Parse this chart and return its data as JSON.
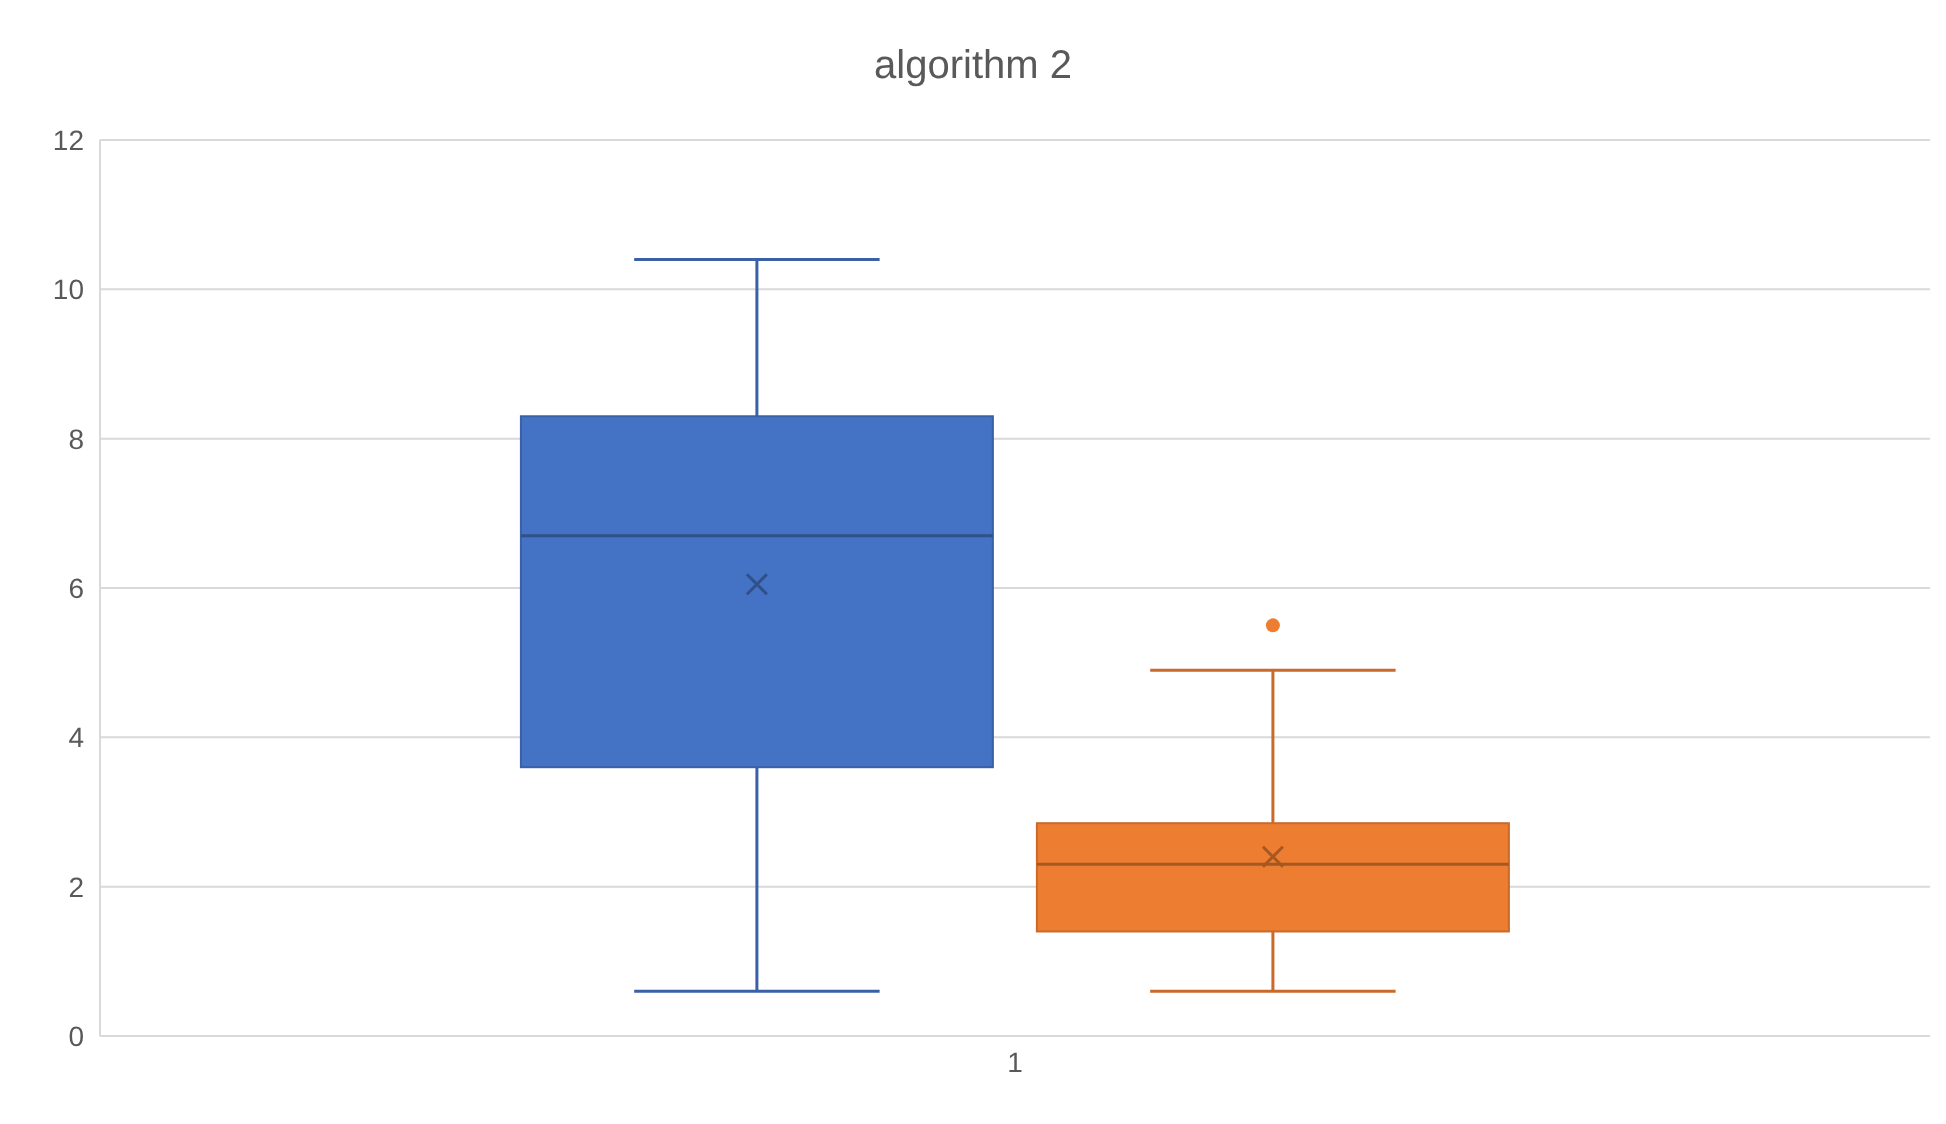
{
  "chart_data": {
    "type": "box",
    "title": "algorithm 2",
    "categories": [
      "1"
    ],
    "series": [
      {
        "color": "#4472c4",
        "boxes": [
          {
            "low": 0.6,
            "q1": 3.6,
            "median": 6.7,
            "q3": 8.3,
            "high": 10.4,
            "mean": 6.05
          }
        ]
      },
      {
        "color": "#ed7d31",
        "boxes": [
          {
            "low": 0.6,
            "q1": 1.4,
            "median": 2.3,
            "q3": 2.85,
            "high": 4.9,
            "mean": 2.4,
            "outliers": [
              5.5
            ]
          }
        ]
      }
    ],
    "ylim": [
      0,
      12
    ],
    "yticks": [
      0,
      2,
      4,
      6,
      8,
      10,
      12
    ],
    "grid": "y",
    "marker": "cross"
  }
}
